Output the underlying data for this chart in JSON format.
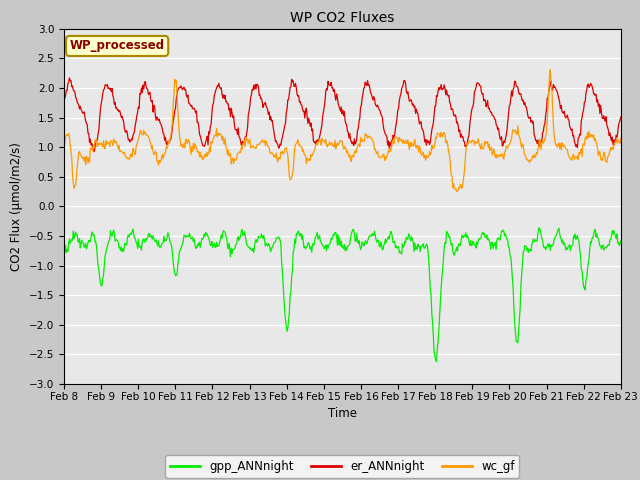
{
  "title": "WP CO2 Fluxes",
  "xlabel": "Time",
  "ylabel": "CO2 Flux (μmol/m2/s)",
  "ylim": [
    -3.0,
    3.0
  ],
  "yticks": [
    -3.0,
    -2.5,
    -2.0,
    -1.5,
    -1.0,
    -0.5,
    0.0,
    0.5,
    1.0,
    1.5,
    2.0,
    2.5,
    3.0
  ],
  "xtick_labels": [
    "Feb 8",
    "Feb 9",
    "Feb 10",
    "Feb 11",
    "Feb 12",
    "Feb 13",
    "Feb 14",
    "Feb 15",
    "Feb 16",
    "Feb 17",
    "Feb 18",
    "Feb 19",
    "Feb 20",
    "Feb 21",
    "Feb 22",
    "Feb 23"
  ],
  "legend_labels": [
    "gpp_ANNnight",
    "er_ANNnight",
    "wc_gf"
  ],
  "legend_colors": [
    "#00ee00",
    "#dd0000",
    "#ff9900"
  ],
  "line_colors": [
    "#00ee00",
    "#dd0000",
    "#ff9900"
  ],
  "watermark_text": "WP_processed",
  "watermark_bg": "#ffffcc",
  "watermark_border": "#aa8800",
  "watermark_textcolor": "#880000",
  "plot_bg": "#e8e8e8",
  "fig_bg": "#c8c8c8",
  "n_points": 720
}
